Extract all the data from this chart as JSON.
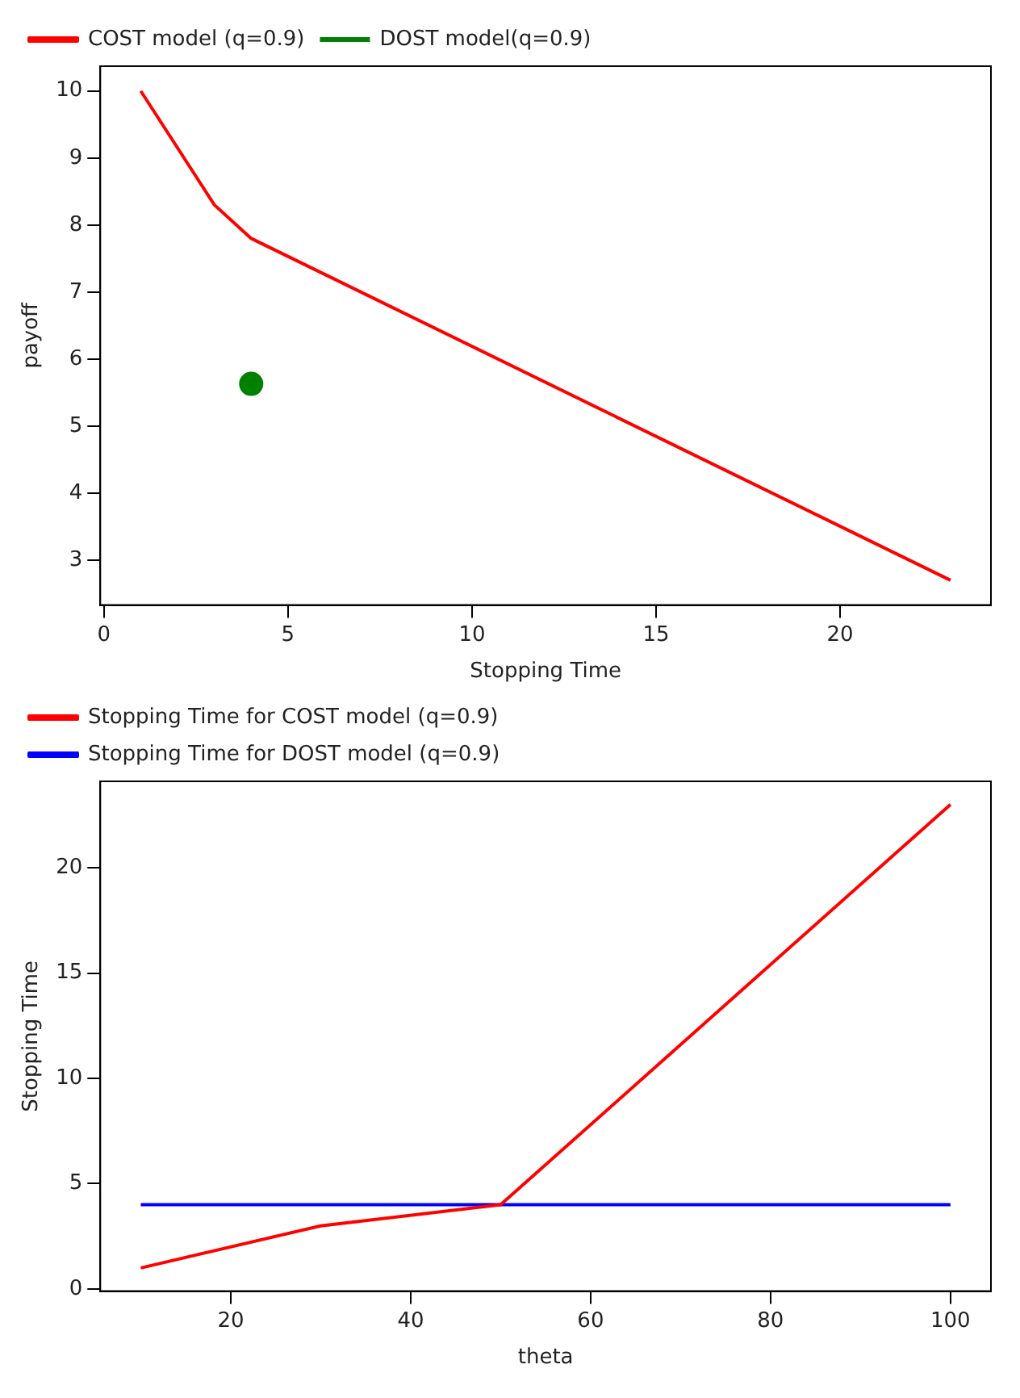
{
  "chart_data": [
    {
      "type": "line",
      "xlabel": "Stopping Time",
      "ylabel": "payoff",
      "xlim": [
        -0.1,
        24.1
      ],
      "ylim": [
        2.33,
        10.37
      ],
      "xticks": [
        0,
        5,
        10,
        15,
        20
      ],
      "yticks": [
        3,
        4,
        5,
        6,
        7,
        8,
        9,
        10
      ],
      "legend": "top left",
      "grid": false,
      "series": [
        {
          "name": "COST model (q=0.9)",
          "color": "#ff0000",
          "x": [
            1,
            3,
            4,
            23
          ],
          "values": [
            10,
            8.3,
            7.8,
            2.7
          ]
        },
        {
          "name": "DOST model(q=0.9)",
          "type": "scatter",
          "marker": "circle",
          "color": "#008000",
          "x": [
            4
          ],
          "values": [
            5.63
          ]
        }
      ]
    },
    {
      "type": "line",
      "xlabel": "theta",
      "ylabel": "Stopping Time",
      "xlim": [
        5.5,
        104.5
      ],
      "ylim": [
        -0.1,
        24.1
      ],
      "xticks": [
        20,
        40,
        60,
        80,
        100
      ],
      "yticks": [
        0,
        5,
        10,
        15,
        20
      ],
      "legend": "top left",
      "grid": false,
      "series": [
        {
          "name": "Stopping Time for COST model (q=0.9)",
          "color": "#ff0000",
          "x": [
            10,
            30,
            50,
            100
          ],
          "values": [
            1,
            3,
            4,
            23
          ]
        },
        {
          "name": "Stopping Time for DOST model (q=0.9)",
          "color": "#0000ff",
          "x": [
            10,
            100
          ],
          "values": [
            4,
            4
          ]
        }
      ]
    }
  ]
}
